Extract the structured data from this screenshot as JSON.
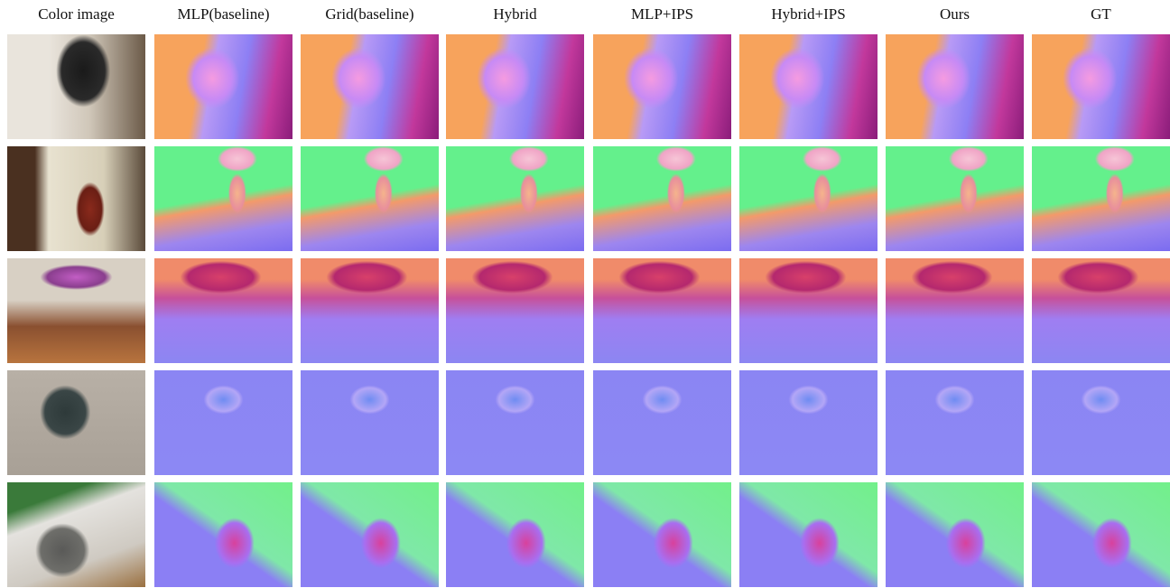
{
  "columns": [
    "Color image",
    "MLP(baseline)",
    "Grid(baseline)",
    "Hybrid",
    "MLP+IPS",
    "Hybrid+IPS",
    "Ours",
    "GT"
  ]
}
